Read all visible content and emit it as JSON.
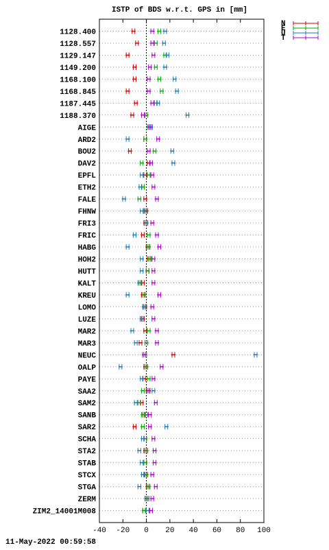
{
  "footer": "11-May-2022 00:59:58",
  "chart_data": {
    "type": "scatter",
    "title": "ISTP of BDS w.r.t. GPS in [mm]",
    "xlabel": "",
    "ylabel": "",
    "xlim": [
      -40,
      100
    ],
    "xticks": [
      -40,
      -20,
      0,
      20,
      40,
      60,
      80,
      100
    ],
    "grid": true,
    "legend_position": "top-right",
    "categories": [
      "1128.400",
      "1128.557",
      "1129.147",
      "1149.200",
      "1168.100",
      "1168.845",
      "1187.445",
      "1188.370",
      "AIGE",
      "ARD2",
      "BOU2",
      "DAV2",
      "EPFL",
      "ETH2",
      "FALE",
      "FHNW",
      "FRI3",
      "FRIC",
      "HABG",
      "HOH2",
      "HUTT",
      "KALT",
      "KREU",
      "LOMO",
      "LUZE",
      "MAR2",
      "MAR3",
      "NEUC",
      "OALP",
      "PAYE",
      "SAA2",
      "SAM2",
      "SANB",
      "SAR2",
      "SCHA",
      "STA2",
      "STAB",
      "STCX",
      "STGA",
      "ZERM",
      "ZIM2_14001M008"
    ],
    "series": [
      {
        "name": "N",
        "color": "#cc0000",
        "values": [
          -11,
          -8,
          -16,
          -10,
          -10,
          -16,
          -9,
          -12,
          2,
          -1,
          -14,
          2,
          -1,
          -3,
          -1,
          -1,
          -1,
          -3,
          1,
          2,
          1,
          -3,
          -3,
          -1,
          -3,
          -1,
          -5,
          23,
          -1,
          -2,
          1,
          -4,
          -2,
          -10,
          -1,
          -1,
          -1,
          -1,
          1,
          0,
          -2
        ]
      },
      {
        "name": "E",
        "color": "#00aa00",
        "values": [
          11,
          8,
          16,
          8,
          11,
          13,
          8,
          0,
          2,
          -1,
          7,
          -4,
          2,
          -3,
          -6,
          -1,
          0,
          2,
          2,
          3,
          1,
          -5,
          -2,
          -2,
          -4,
          2,
          0,
          -1,
          0,
          2,
          -3,
          -6,
          -3,
          -3,
          -1,
          0,
          -1,
          0,
          2,
          1,
          -2
        ]
      },
      {
        "name": "U",
        "color": "#1f77b4",
        "values": [
          16,
          15,
          18,
          16,
          24,
          26,
          10,
          35,
          4,
          -16,
          22,
          23,
          -4,
          -5,
          -19,
          -4,
          0,
          -10,
          -16,
          -4,
          -4,
          -6,
          -16,
          -2,
          -4,
          -12,
          -9,
          93,
          -22,
          -4,
          6,
          -9,
          0,
          17,
          -3,
          -6,
          -4,
          -3,
          -6,
          0,
          1
        ]
      },
      {
        "name": "T",
        "color": "#aa00cc",
        "values": [
          5,
          5,
          6,
          3,
          2,
          2,
          5,
          -3,
          3,
          10,
          2,
          4,
          5,
          6,
          9,
          0,
          5,
          9,
          11,
          6,
          6,
          6,
          11,
          5,
          6,
          9,
          9,
          -2,
          13,
          6,
          2,
          8,
          3,
          3,
          6,
          7,
          7,
          5,
          8,
          5,
          4
        ]
      }
    ]
  }
}
